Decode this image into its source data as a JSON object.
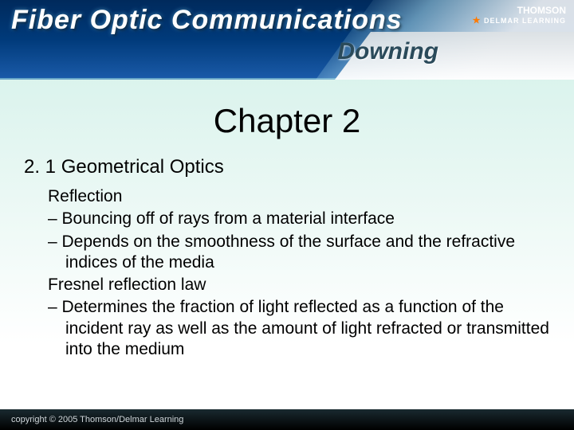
{
  "header": {
    "title_main": "Fiber Optic Communications",
    "title_sub": "Downing",
    "brand_top": "THOMSON",
    "brand_sub": "DELMAR LEARNING"
  },
  "chapter": {
    "title": "Chapter 2"
  },
  "section": {
    "number_label": "2. 1  Geometrical Optics"
  },
  "content": {
    "subhead1": "Reflection",
    "bullet1": "–  Bouncing off of rays from a material interface",
    "bullet2": "–  Depends on the smoothness of the surface and the refractive indices of the media",
    "subhead2": "Fresnel reflection law",
    "bullet3": "–  Determines the fraction of light reflected as a function of the incident ray as well as the amount of light refracted or transmitted into the medium"
  },
  "footer": {
    "copyright": "copyright © 2005 Thomson/Delmar Learning"
  }
}
